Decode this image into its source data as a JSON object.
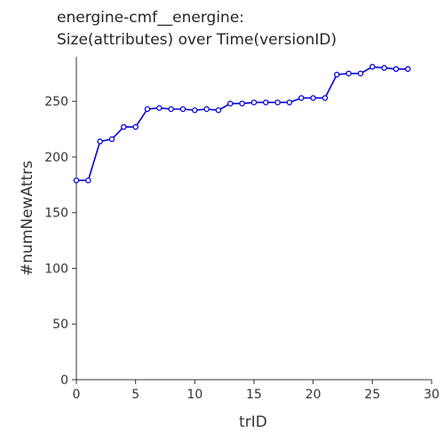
{
  "chart_data": {
    "type": "line",
    "title_lines": [
      "energine-cmf__energine:",
      "Size(attributes) over Time(versionID)"
    ],
    "xlabel": "trID",
    "ylabel": "#numNewAttrs",
    "xlim": [
      0,
      30
    ],
    "ylim": [
      0,
      290
    ],
    "xticks": [
      0,
      5,
      10,
      15,
      20,
      25,
      30
    ],
    "yticks": [
      0,
      50,
      100,
      150,
      200,
      250
    ],
    "grid": false,
    "series": [
      {
        "color": "#0000dd",
        "x": [
          0,
          1,
          2,
          3,
          4,
          5,
          6,
          7,
          8,
          9,
          10,
          11,
          12,
          13,
          14,
          15,
          16,
          17,
          18,
          19,
          20,
          21,
          22,
          23,
          24,
          25,
          26,
          27,
          28
        ],
        "y": [
          179,
          179,
          214,
          216,
          227,
          227,
          243,
          244,
          243,
          243,
          242,
          243,
          242,
          248,
          248,
          249,
          249,
          249,
          249,
          253,
          253,
          253,
          274,
          275,
          275,
          281,
          280,
          279,
          279
        ]
      }
    ]
  }
}
